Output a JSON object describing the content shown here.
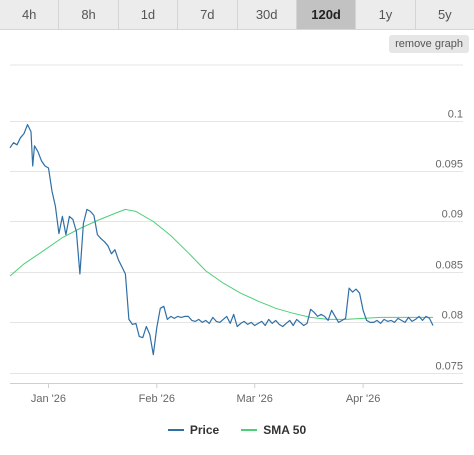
{
  "toolbar": {
    "ranges": [
      {
        "label": "4h",
        "active": false
      },
      {
        "label": "8h",
        "active": false
      },
      {
        "label": "1d",
        "active": false
      },
      {
        "label": "7d",
        "active": false
      },
      {
        "label": "30d",
        "active": false
      },
      {
        "label": "120d",
        "active": true
      },
      {
        "label": "1y",
        "active": false
      },
      {
        "label": "5y",
        "active": false
      }
    ],
    "remove_label": "remove graph"
  },
  "colors": {
    "price": "#2f6fa6",
    "sma": "#4ccf77",
    "grid": "#e5e5e5"
  },
  "chart_data": {
    "type": "line",
    "title": "",
    "xlabel": "",
    "ylabel": "",
    "ylim": [
      0.074,
      0.1055
    ],
    "xlim": [
      "2025-12-21",
      "2026-04-21"
    ],
    "grid": "horizontal",
    "legend_position": "bottom",
    "y_ticks": [
      {
        "value": 0.075,
        "label": "0.075"
      },
      {
        "value": 0.08,
        "label": "0.08"
      },
      {
        "value": 0.085,
        "label": "0.085"
      },
      {
        "value": 0.09,
        "label": "0.09"
      },
      {
        "value": 0.095,
        "label": "0.095"
      },
      {
        "value": 0.1,
        "label": "0.1"
      }
    ],
    "x_ticks": [
      {
        "value": "2026-01-01",
        "label": "Jan '26"
      },
      {
        "value": "2026-02-01",
        "label": "Feb '26"
      },
      {
        "value": "2026-03-01",
        "label": "Mar '26"
      },
      {
        "value": "2026-04-01",
        "label": "Apr '26"
      }
    ],
    "series": [
      {
        "name": "Price",
        "color": "#2f6fa6",
        "points": [
          [
            "2025-12-21",
            0.0973
          ],
          [
            "2025-12-22",
            0.0978
          ],
          [
            "2025-12-23",
            0.0976
          ],
          [
            "2025-12-24",
            0.0983
          ],
          [
            "2025-12-25",
            0.0987
          ],
          [
            "2025-12-26",
            0.0996
          ],
          [
            "2025-12-27",
            0.0989
          ],
          [
            "2025-12-27T12:00",
            0.0955
          ],
          [
            "2025-12-28",
            0.0975
          ],
          [
            "2025-12-29",
            0.0969
          ],
          [
            "2025-12-30",
            0.096
          ],
          [
            "2025-12-31",
            0.0955
          ],
          [
            "2026-01-01",
            0.0953
          ],
          [
            "2026-01-02",
            0.093
          ],
          [
            "2026-01-03",
            0.0915
          ],
          [
            "2026-01-04",
            0.0888
          ],
          [
            "2026-01-05",
            0.0905
          ],
          [
            "2026-01-06",
            0.0887
          ],
          [
            "2026-01-07",
            0.0905
          ],
          [
            "2026-01-08",
            0.0902
          ],
          [
            "2026-01-09",
            0.089
          ],
          [
            "2026-01-10",
            0.0848
          ],
          [
            "2026-01-11",
            0.0898
          ],
          [
            "2026-01-12",
            0.0912
          ],
          [
            "2026-01-13",
            0.091
          ],
          [
            "2026-01-14",
            0.0906
          ],
          [
            "2026-01-15",
            0.0887
          ],
          [
            "2026-01-16",
            0.0883
          ],
          [
            "2026-01-17",
            0.088
          ],
          [
            "2026-01-18",
            0.0876
          ],
          [
            "2026-01-19",
            0.0868
          ],
          [
            "2026-01-20",
            0.0872
          ],
          [
            "2026-01-21",
            0.0862
          ],
          [
            "2026-01-22",
            0.0855
          ],
          [
            "2026-01-23",
            0.0848
          ],
          [
            "2026-01-24",
            0.0803
          ],
          [
            "2026-01-25",
            0.0798
          ],
          [
            "2026-01-26",
            0.0799
          ],
          [
            "2026-01-27",
            0.0786
          ],
          [
            "2026-01-28",
            0.0785
          ],
          [
            "2026-01-29",
            0.0796
          ],
          [
            "2026-01-30",
            0.0788
          ],
          [
            "2026-01-31",
            0.0768
          ],
          [
            "2026-02-01",
            0.0795
          ],
          [
            "2026-02-02",
            0.0814
          ],
          [
            "2026-02-03",
            0.0816
          ],
          [
            "2026-02-04",
            0.0803
          ],
          [
            "2026-02-05",
            0.0806
          ],
          [
            "2026-02-06",
            0.0804
          ],
          [
            "2026-02-07",
            0.0806
          ],
          [
            "2026-02-08",
            0.0805
          ],
          [
            "2026-02-09",
            0.0806
          ],
          [
            "2026-02-10",
            0.0806
          ],
          [
            "2026-02-11",
            0.0802
          ],
          [
            "2026-02-12",
            0.0801
          ],
          [
            "2026-02-13",
            0.0803
          ],
          [
            "2026-02-14",
            0.08
          ],
          [
            "2026-02-15",
            0.0802
          ],
          [
            "2026-02-16",
            0.0799
          ],
          [
            "2026-02-17",
            0.0805
          ],
          [
            "2026-02-18",
            0.0801
          ],
          [
            "2026-02-19",
            0.08
          ],
          [
            "2026-02-20",
            0.0803
          ],
          [
            "2026-02-21",
            0.0806
          ],
          [
            "2026-02-22",
            0.0799
          ],
          [
            "2026-02-23",
            0.0808
          ],
          [
            "2026-02-24",
            0.0796
          ],
          [
            "2026-02-25",
            0.0799
          ],
          [
            "2026-02-26",
            0.0801
          ],
          [
            "2026-02-27",
            0.0798
          ],
          [
            "2026-02-28",
            0.08
          ],
          [
            "2026-03-01",
            0.0797
          ],
          [
            "2026-03-02",
            0.0799
          ],
          [
            "2026-03-03",
            0.0801
          ],
          [
            "2026-03-04",
            0.0797
          ],
          [
            "2026-03-05",
            0.0803
          ],
          [
            "2026-03-06",
            0.0799
          ],
          [
            "2026-03-07",
            0.0802
          ],
          [
            "2026-03-08",
            0.0798
          ],
          [
            "2026-03-09",
            0.0796
          ],
          [
            "2026-03-10",
            0.0799
          ],
          [
            "2026-03-11",
            0.0802
          ],
          [
            "2026-03-12",
            0.0797
          ],
          [
            "2026-03-13",
            0.0803
          ],
          [
            "2026-03-14",
            0.08
          ],
          [
            "2026-03-15",
            0.0797
          ],
          [
            "2026-03-16",
            0.0799
          ],
          [
            "2026-03-17",
            0.0813
          ],
          [
            "2026-03-18",
            0.081
          ],
          [
            "2026-03-19",
            0.0806
          ],
          [
            "2026-03-20",
            0.0808
          ],
          [
            "2026-03-21",
            0.0806
          ],
          [
            "2026-03-22",
            0.0802
          ],
          [
            "2026-03-23",
            0.0812
          ],
          [
            "2026-03-24",
            0.0806
          ],
          [
            "2026-03-25",
            0.08
          ],
          [
            "2026-03-26",
            0.0802
          ],
          [
            "2026-03-27",
            0.0804
          ],
          [
            "2026-03-28",
            0.0834
          ],
          [
            "2026-03-29",
            0.083
          ],
          [
            "2026-03-30",
            0.0833
          ],
          [
            "2026-03-31",
            0.0829
          ],
          [
            "2026-04-01",
            0.0812
          ],
          [
            "2026-04-02",
            0.0802
          ],
          [
            "2026-04-03",
            0.08
          ],
          [
            "2026-04-04",
            0.08
          ],
          [
            "2026-04-05",
            0.0802
          ],
          [
            "2026-04-06",
            0.0799
          ],
          [
            "2026-04-07",
            0.0803
          ],
          [
            "2026-04-08",
            0.0801
          ],
          [
            "2026-04-09",
            0.0802
          ],
          [
            "2026-04-10",
            0.08
          ],
          [
            "2026-04-11",
            0.0804
          ],
          [
            "2026-04-12",
            0.0802
          ],
          [
            "2026-04-13",
            0.08
          ],
          [
            "2026-04-14",
            0.0805
          ],
          [
            "2026-04-15",
            0.0801
          ],
          [
            "2026-04-16",
            0.0803
          ],
          [
            "2026-04-17",
            0.0806
          ],
          [
            "2026-04-18",
            0.0802
          ],
          [
            "2026-04-19",
            0.0806
          ],
          [
            "2026-04-20",
            0.0804
          ],
          [
            "2026-04-21",
            0.0797
          ]
        ]
      },
      {
        "name": "SMA 50",
        "color": "#4ccf77",
        "points": [
          [
            "2025-12-21",
            0.0846
          ],
          [
            "2025-12-25",
            0.0858
          ],
          [
            "2025-12-31",
            0.0872
          ],
          [
            "2026-01-05",
            0.0884
          ],
          [
            "2026-01-10",
            0.0893
          ],
          [
            "2026-01-15",
            0.0901
          ],
          [
            "2026-01-20",
            0.0908
          ],
          [
            "2026-01-23",
            0.0912
          ],
          [
            "2026-01-26",
            0.091
          ],
          [
            "2026-01-31",
            0.09
          ],
          [
            "2026-02-05",
            0.0886
          ],
          [
            "2026-02-10",
            0.0869
          ],
          [
            "2026-02-15",
            0.0851
          ],
          [
            "2026-02-20",
            0.0839
          ],
          [
            "2026-02-25",
            0.0829
          ],
          [
            "2026-03-02",
            0.0821
          ],
          [
            "2026-03-07",
            0.0814
          ],
          [
            "2026-03-12",
            0.0809
          ],
          [
            "2026-03-17",
            0.0805
          ],
          [
            "2026-03-22",
            0.0803
          ],
          [
            "2026-03-27",
            0.0803
          ],
          [
            "2026-04-01",
            0.0804
          ],
          [
            "2026-04-06",
            0.0805
          ],
          [
            "2026-04-11",
            0.0805
          ],
          [
            "2026-04-16",
            0.0805
          ],
          [
            "2026-04-21",
            0.0805
          ]
        ]
      }
    ]
  }
}
